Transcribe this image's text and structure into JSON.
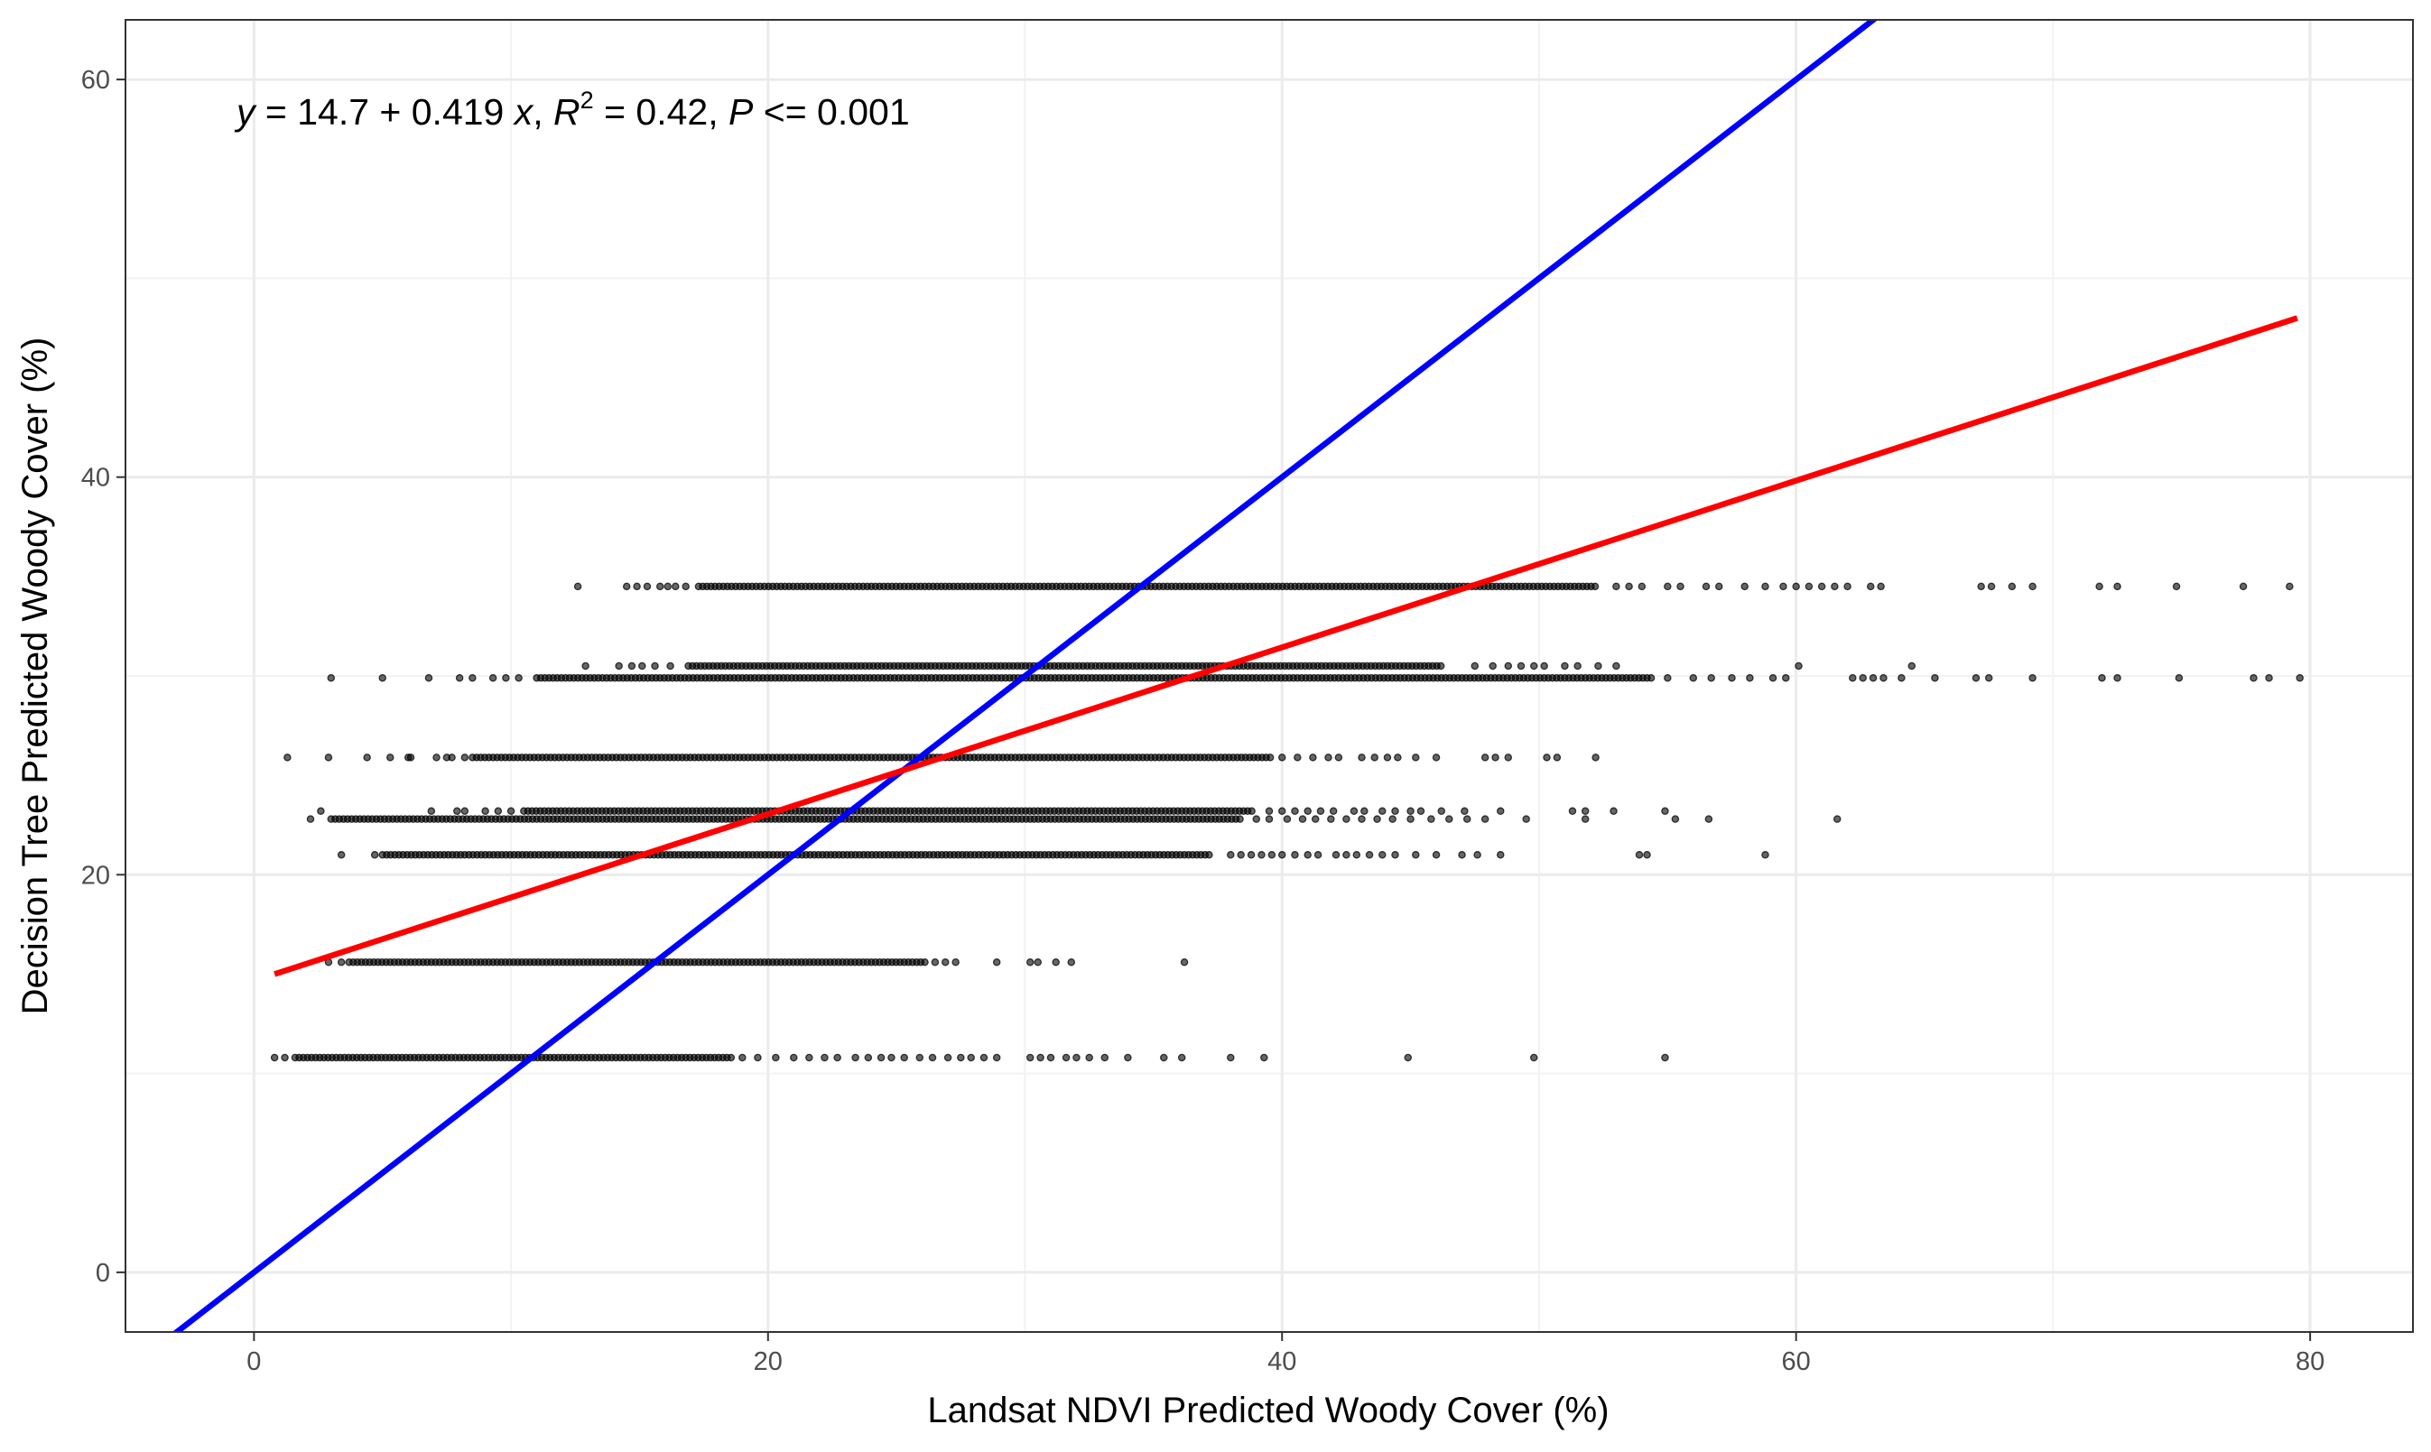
{
  "chart_data": {
    "type": "scatter",
    "title": "",
    "xlabel": "Landsat NDVI Predicted Woody Cover (%)",
    "ylabel": "Decision Tree Predicted Woody Cover (%)",
    "xlim": [
      -5,
      84
    ],
    "ylim": [
      -3,
      63
    ],
    "x_ticks": [
      0,
      20,
      40,
      60,
      80
    ],
    "y_ticks": [
      0,
      20,
      40,
      60
    ],
    "x_minor_gridlines": [
      10,
      30,
      50,
      70
    ],
    "y_minor_gridlines": [
      10,
      30,
      50
    ],
    "grid": true,
    "legend": "none",
    "annotation": {
      "y_var": "y",
      "eq_rest": " = 14.7 + 0.419 ",
      "x_var": "x",
      "sep1": ", ",
      "r_var": "R",
      "r_exp": "2",
      "r_rest": " = 0.42, ",
      "p_var": "P",
      "p_rest": " <= 0.001"
    },
    "point_color": "#000000",
    "point_bands": [
      {
        "y": 34.5,
        "dense_from": 17.3,
        "dense_to": 52.2,
        "sparse": [
          12.6,
          14.5,
          14.9,
          15.3,
          15.8,
          16.1,
          16.4,
          16.8,
          53.0,
          53.5,
          54.0,
          55.0,
          55.5,
          56.5,
          57.0,
          58.0,
          58.8,
          59.5,
          60.0,
          60.5,
          61.0,
          61.5,
          62.0,
          62.9,
          63.3,
          67.2,
          67.6,
          68.4,
          69.2,
          71.8,
          72.5,
          74.8,
          77.4,
          79.2
        ]
      },
      {
        "y": 30.5,
        "dense_from": 16.9,
        "dense_to": 46.2,
        "sparse": [
          12.9,
          14.2,
          14.7,
          15.1,
          15.6,
          16.2,
          47.5,
          48.2,
          48.8,
          49.3,
          49.8,
          50.2,
          51.0,
          51.5,
          52.3,
          53.0,
          60.1,
          64.5
        ]
      },
      {
        "y": 29.9,
        "dense_from": 11.0,
        "dense_to": 54.5,
        "sparse": [
          3.0,
          5.0,
          6.8,
          8.0,
          8.5,
          9.3,
          9.8,
          10.3,
          55.0,
          56.0,
          56.7,
          57.5,
          58.2,
          59.1,
          59.6,
          62.2,
          62.6,
          63.0,
          63.4,
          64.1,
          65.4,
          67.0,
          67.5,
          69.2,
          71.9,
          72.5,
          74.9,
          77.8,
          78.4,
          79.6
        ]
      },
      {
        "y": 25.9,
        "dense_from": 8.5,
        "dense_to": 39.6,
        "sparse": [
          1.3,
          2.9,
          4.4,
          5.3,
          6.0,
          6.1,
          7.1,
          7.5,
          7.7,
          8.2,
          40.0,
          40.6,
          41.2,
          41.8,
          42.2,
          43.1,
          43.6,
          44.1,
          44.5,
          45.2,
          46.0,
          47.9,
          48.3,
          48.8,
          50.3,
          50.7,
          52.2
        ]
      },
      {
        "y": 23.2,
        "dense_from": 10.5,
        "dense_to": 38.9,
        "sparse": [
          2.6,
          6.9,
          7.9,
          8.2,
          9.0,
          9.5,
          10.0,
          39.5,
          40.0,
          40.5,
          41.0,
          41.5,
          42.0,
          42.8,
          43.2,
          43.9,
          44.4,
          45.0,
          45.4,
          46.2,
          47.1,
          48.5,
          51.3,
          51.8,
          52.9,
          54.9
        ]
      },
      {
        "y": 22.8,
        "dense_from": 3.0,
        "dense_to": 38.4,
        "sparse": [
          2.2,
          39.0,
          39.5,
          40.2,
          40.8,
          41.3,
          41.9,
          42.5,
          43.1,
          43.7,
          44.3,
          45.0,
          45.8,
          46.5,
          47.2,
          47.9,
          49.5,
          51.8,
          55.3,
          56.6,
          61.6
        ]
      },
      {
        "y": 21.0,
        "dense_from": 5.0,
        "dense_to": 37.3,
        "sparse": [
          3.4,
          4.7,
          38.0,
          38.4,
          38.8,
          39.2,
          39.6,
          40.0,
          40.5,
          41.0,
          41.4,
          42.1,
          42.5,
          42.9,
          43.4,
          43.9,
          44.4,
          45.2,
          46.0,
          47.0,
          47.6,
          48.5,
          53.9,
          54.2,
          58.8
        ]
      },
      {
        "y": 15.6,
        "dense_from": 3.7,
        "dense_to": 26.2,
        "sparse": [
          2.9,
          3.4,
          26.5,
          26.9,
          27.3,
          28.9,
          30.2,
          30.5,
          31.2,
          31.8,
          36.2
        ]
      },
      {
        "y": 10.8,
        "dense_from": 1.6,
        "dense_to": 18.6,
        "sparse": [
          0.8,
          1.2,
          19.0,
          19.6,
          20.3,
          21.0,
          21.6,
          22.2,
          22.7,
          23.4,
          23.9,
          24.4,
          24.8,
          25.3,
          25.9,
          26.4,
          27.0,
          27.5,
          27.9,
          28.4,
          28.9,
          30.2,
          30.6,
          31.0,
          31.6,
          32.0,
          32.5,
          33.1,
          34.0,
          35.4,
          36.1,
          38.0,
          39.3,
          44.9,
          49.8,
          54.9
        ]
      }
    ],
    "lines": [
      {
        "kind": "one-to-one",
        "color": "#0000ff",
        "x1": -5,
        "y1": -5,
        "x2": 70,
        "y2": 70
      },
      {
        "kind": "fit",
        "color": "#ff0000",
        "x1": 0.8,
        "y1": 15.0,
        "x2": 79.5,
        "y2": 48.0
      }
    ]
  }
}
